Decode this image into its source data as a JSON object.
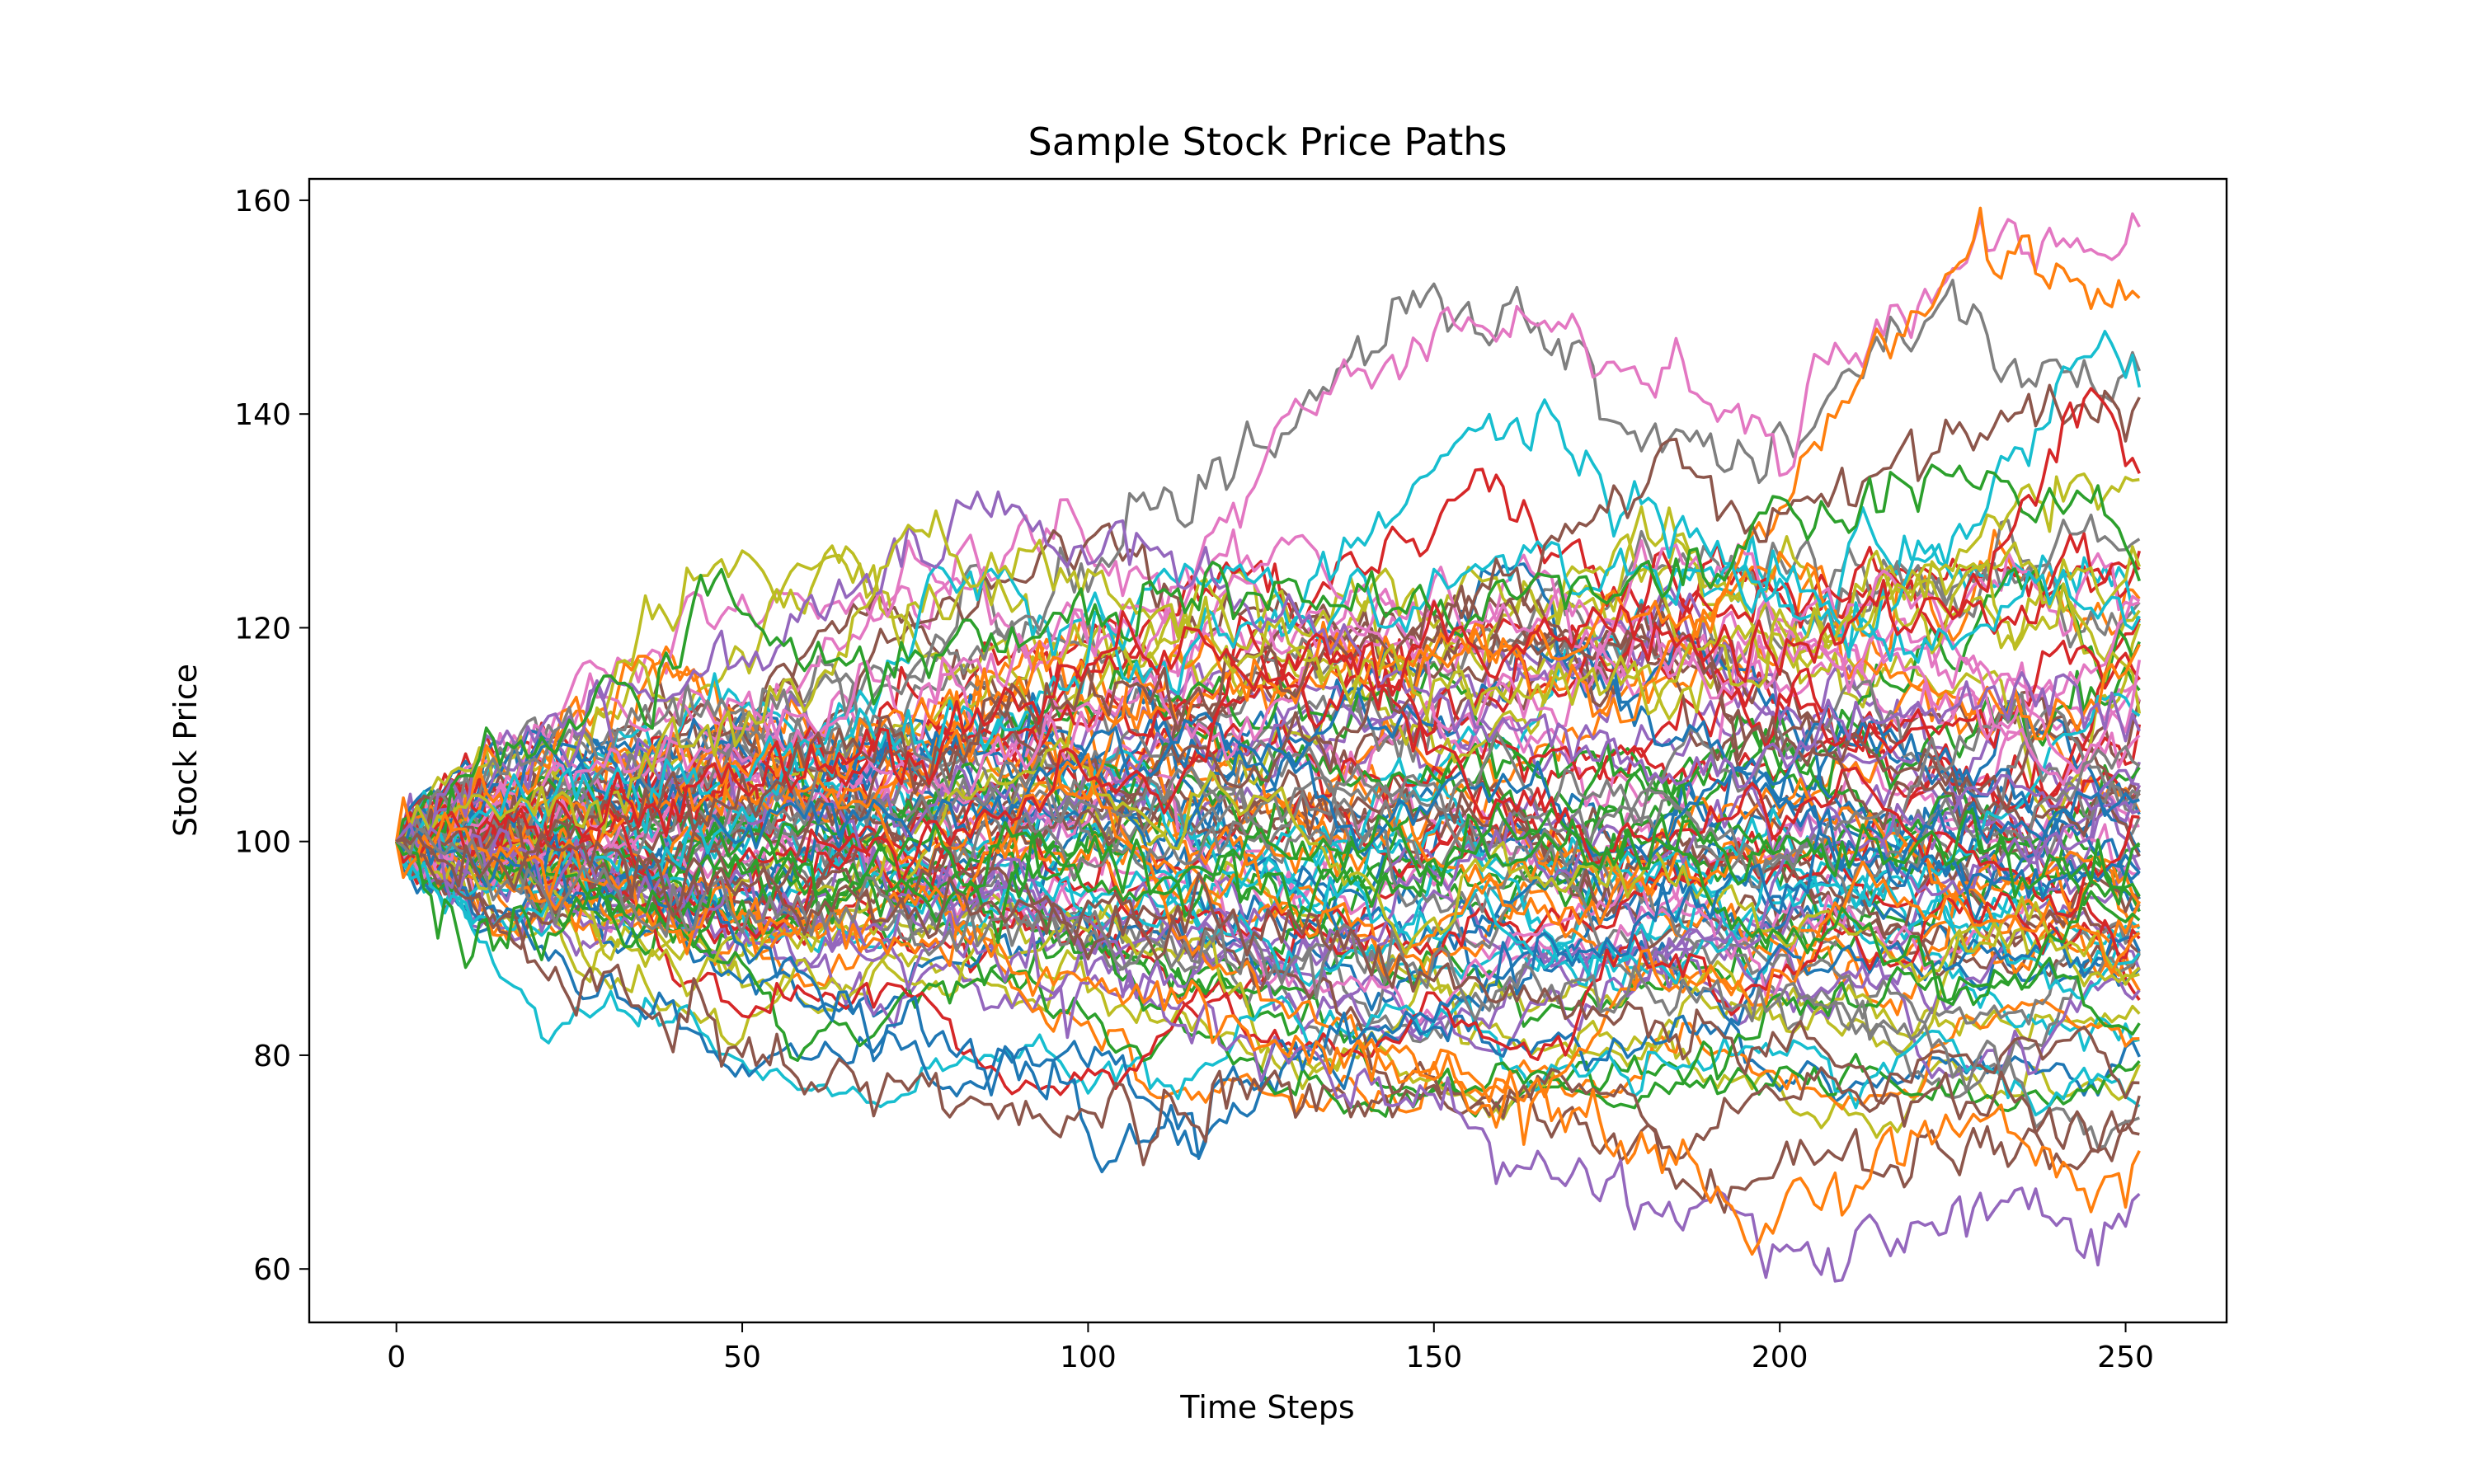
{
  "chart_data": {
    "type": "line",
    "title": "Sample Stock Price Paths",
    "xlabel": "Time Steps",
    "ylabel": "Stock Price",
    "xlim": [
      -12.6,
      264.6
    ],
    "ylim": [
      55,
      162
    ],
    "xticks": [
      "0",
      "50",
      "100",
      "150",
      "200",
      "250"
    ],
    "yticks": [
      "60",
      "80",
      "100",
      "120",
      "140",
      "160"
    ],
    "grid": false,
    "legend": "none",
    "n_steps": 252,
    "start_value": 100,
    "n_series": 100,
    "palette": [
      "#1f77b4",
      "#ff7f0e",
      "#2ca02c",
      "#d62728",
      "#9467bd",
      "#8c564b",
      "#e377c2",
      "#7f7f7f",
      "#bcbd22",
      "#17becf"
    ],
    "highlighted_paths": [
      {
        "color": "#7f7f7f",
        "points": [
          [
            0,
            100
          ],
          [
            20,
            110
          ],
          [
            50,
            113
          ],
          [
            80,
            116
          ],
          [
            100,
            126
          ],
          [
            120,
            134
          ],
          [
            135,
            145
          ],
          [
            147,
            153
          ],
          [
            165,
            147
          ],
          [
            180,
            138
          ],
          [
            200,
            136
          ],
          [
            215,
            148
          ],
          [
            225,
            151
          ],
          [
            235,
            143
          ],
          [
            252,
            144
          ]
        ]
      },
      {
        "color": "#e377c2",
        "points": [
          [
            0,
            100
          ],
          [
            30,
            108
          ],
          [
            60,
            112
          ],
          [
            95,
            118
          ],
          [
            115,
            124
          ],
          [
            125,
            134
          ],
          [
            130,
            142
          ],
          [
            150,
            146
          ],
          [
            165,
            148
          ],
          [
            180,
            143
          ],
          [
            200,
            138
          ],
          [
            215,
            150
          ],
          [
            225,
            155
          ],
          [
            238,
            156
          ],
          [
            252,
            153
          ]
        ]
      },
      {
        "color": "#ff7f0e",
        "points": [
          [
            0,
            100
          ],
          [
            40,
            104
          ],
          [
            80,
            112
          ],
          [
            120,
            116
          ],
          [
            160,
            118
          ],
          [
            190,
            122
          ],
          [
            210,
            142
          ],
          [
            220,
            150
          ],
          [
            230,
            157
          ],
          [
            240,
            154
          ],
          [
            252,
            149
          ]
        ]
      },
      {
        "color": "#17becf",
        "points": [
          [
            0,
            100
          ],
          [
            40,
            106
          ],
          [
            80,
            110
          ],
          [
            110,
            118
          ],
          [
            130,
            122
          ],
          [
            148,
            132
          ],
          [
            158,
            140
          ],
          [
            168,
            139
          ],
          [
            175,
            132
          ],
          [
            190,
            126
          ],
          [
            210,
            120
          ],
          [
            230,
            132
          ],
          [
            245,
            147
          ],
          [
            252,
            144
          ]
        ]
      },
      {
        "color": "#8c564b",
        "points": [
          [
            0,
            100
          ],
          [
            50,
            104
          ],
          [
            100,
            112
          ],
          [
            140,
            118
          ],
          [
            170,
            128
          ],
          [
            185,
            137
          ],
          [
            195,
            128
          ],
          [
            215,
            135
          ],
          [
            235,
            138
          ],
          [
            252,
            141
          ]
        ]
      },
      {
        "color": "#9467bd",
        "points": [
          [
            0,
            100
          ],
          [
            20,
            110
          ],
          [
            45,
            116
          ],
          [
            60,
            122
          ],
          [
            75,
            128
          ],
          [
            85,
            132
          ],
          [
            92,
            128
          ],
          [
            110,
            124
          ],
          [
            135,
            118
          ],
          [
            155,
            112
          ],
          [
            170,
            108
          ],
          [
            190,
            106
          ],
          [
            210,
            110
          ],
          [
            230,
            115
          ],
          [
            252,
            110
          ]
        ]
      },
      {
        "color": "#bcbd22",
        "points": [
          [
            0,
            100
          ],
          [
            30,
            106
          ],
          [
            55,
            112
          ],
          [
            70,
            125
          ],
          [
            78,
            130
          ],
          [
            85,
            126
          ],
          [
            100,
            124
          ],
          [
            120,
            118
          ],
          [
            150,
            114
          ],
          [
            185,
            116
          ],
          [
            215,
            122
          ],
          [
            235,
            130
          ],
          [
            252,
            132
          ]
        ]
      },
      {
        "color": "#2ca02c",
        "points": [
          [
            0,
            100
          ],
          [
            15,
            108
          ],
          [
            35,
            114
          ],
          [
            48,
            122
          ],
          [
            60,
            116
          ],
          [
            80,
            118
          ],
          [
            100,
            120
          ],
          [
            120,
            124
          ],
          [
            150,
            122
          ],
          [
            180,
            124
          ],
          [
            200,
            130
          ],
          [
            225,
            134
          ],
          [
            245,
            130
          ],
          [
            252,
            126
          ]
        ]
      },
      {
        "color": "#d62728",
        "points": [
          [
            0,
            100
          ],
          [
            40,
            104
          ],
          [
            80,
            110
          ],
          [
            100,
            116
          ],
          [
            105,
            120
          ],
          [
            125,
            116
          ],
          [
            150,
            118
          ],
          [
            180,
            120
          ],
          [
            205,
            118
          ],
          [
            230,
            124
          ],
          [
            245,
            142
          ],
          [
            252,
            134
          ]
        ]
      },
      {
        "color": "#1f77b4",
        "points": [
          [
            0,
            100
          ],
          [
            35,
            96
          ],
          [
            55,
            88
          ],
          [
            80,
            82
          ],
          [
            95,
            76
          ],
          [
            103,
            72
          ],
          [
            115,
            74
          ],
          [
            130,
            80
          ],
          [
            150,
            84
          ],
          [
            170,
            90
          ],
          [
            190,
            96
          ],
          [
            215,
            100
          ],
          [
            235,
            96
          ],
          [
            252,
            98
          ]
        ]
      },
      {
        "color": "#8c564b",
        "points": [
          [
            0,
            100
          ],
          [
            15,
            94
          ],
          [
            25,
            88
          ],
          [
            35,
            83
          ],
          [
            45,
            82
          ],
          [
            60,
            78
          ],
          [
            80,
            76
          ],
          [
            100,
            74
          ],
          [
            120,
            76
          ],
          [
            150,
            76
          ],
          [
            175,
            72
          ],
          [
            195,
            68
          ],
          [
            210,
            70
          ],
          [
            230,
            72
          ],
          [
            245,
            70
          ],
          [
            252,
            72
          ]
        ]
      },
      {
        "color": "#9467bd",
        "points": [
          [
            0,
            100
          ],
          [
            30,
            96
          ],
          [
            60,
            92
          ],
          [
            90,
            88
          ],
          [
            110,
            84
          ],
          [
            130,
            80
          ],
          [
            150,
            75
          ],
          [
            165,
            70
          ],
          [
            180,
            67
          ],
          [
            195,
            64
          ],
          [
            203,
            60
          ],
          [
            212,
            61
          ],
          [
            222,
            64
          ],
          [
            235,
            65
          ],
          [
            252,
            63
          ]
        ]
      },
      {
        "color": "#ff7f0e",
        "points": [
          [
            0,
            100
          ],
          [
            30,
            95
          ],
          [
            60,
            92
          ],
          [
            90,
            89
          ],
          [
            115,
            84
          ],
          [
            140,
            80
          ],
          [
            160,
            76
          ],
          [
            180,
            72
          ],
          [
            195,
            65
          ],
          [
            210,
            68
          ],
          [
            230,
            74
          ],
          [
            245,
            70
          ],
          [
            252,
            68
          ]
        ]
      },
      {
        "color": "#2ca02c",
        "points": [
          [
            0,
            100
          ],
          [
            5,
            96
          ],
          [
            10,
            91
          ],
          [
            20,
            95
          ],
          [
            40,
            94
          ],
          [
            60,
            97
          ],
          [
            80,
            95
          ],
          [
            100,
            97
          ],
          [
            130,
            95
          ],
          [
            160,
            98
          ],
          [
            190,
            100
          ],
          [
            220,
            98
          ],
          [
            252,
            98
          ]
        ]
      },
      {
        "color": "#7f7f7f",
        "points": [
          [
            0,
            100
          ],
          [
            40,
            94
          ],
          [
            80,
            92
          ],
          [
            120,
            90
          ],
          [
            160,
            88
          ],
          [
            200,
            84
          ],
          [
            230,
            80
          ],
          [
            245,
            74
          ],
          [
            252,
            74
          ]
        ]
      },
      {
        "color": "#8c564b",
        "points": [
          [
            0,
            100
          ],
          [
            40,
            98
          ],
          [
            80,
            94
          ],
          [
            120,
            92
          ],
          [
            160,
            86
          ],
          [
            200,
            80
          ],
          [
            230,
            76
          ],
          [
            245,
            72
          ],
          [
            252,
            76
          ]
        ]
      }
    ]
  }
}
